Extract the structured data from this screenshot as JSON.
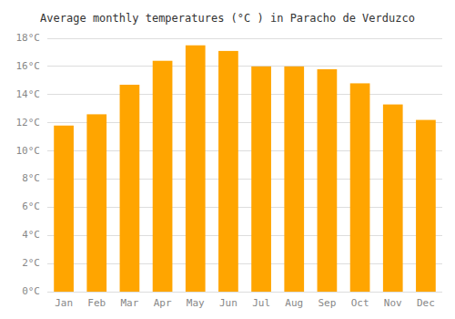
{
  "chart_data": {
    "type": "bar",
    "title": "Average monthly temperatures (°C ) in Paracho de Verduzco",
    "categories": [
      "Jan",
      "Feb",
      "Mar",
      "Apr",
      "May",
      "Jun",
      "Jul",
      "Aug",
      "Sep",
      "Oct",
      "Nov",
      "Dec"
    ],
    "values": [
      11.8,
      12.6,
      14.7,
      16.4,
      17.5,
      17.1,
      16.0,
      16.0,
      15.8,
      14.8,
      13.3,
      12.2
    ],
    "color": "#FFA500",
    "ylim": [
      0,
      18
    ],
    "yticks": [
      {
        "value": 0,
        "label": "0°C"
      },
      {
        "value": 2,
        "label": "2°C"
      },
      {
        "value": 4,
        "label": "4°C"
      },
      {
        "value": 6,
        "label": "6°C"
      },
      {
        "value": 8,
        "label": "8°C"
      },
      {
        "value": 10,
        "label": "10°C"
      },
      {
        "value": 12,
        "label": "12°C"
      },
      {
        "value": 14,
        "label": "14°C"
      },
      {
        "value": 16,
        "label": "16°C"
      },
      {
        "value": 18,
        "label": "18°C"
      }
    ],
    "grid": true
  }
}
